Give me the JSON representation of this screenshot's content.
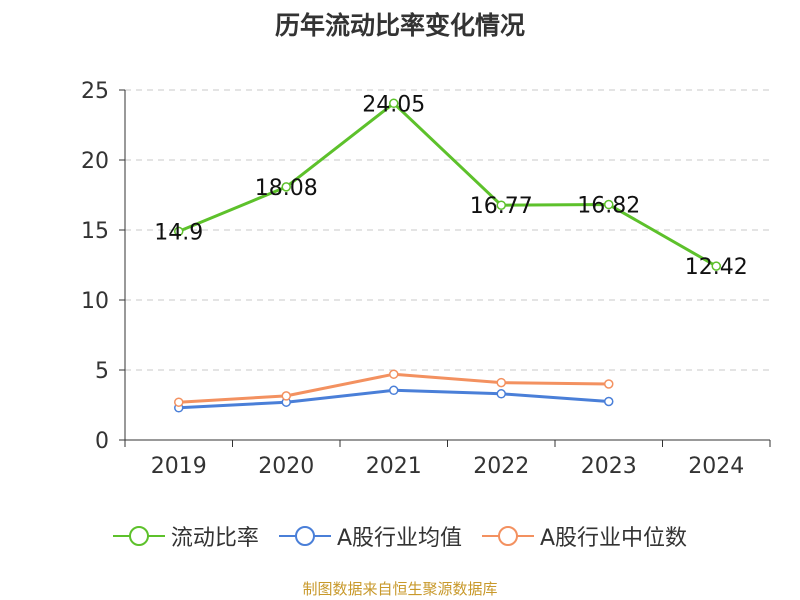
{
  "chart_data": {
    "type": "line",
    "title": "历年流动比率变化情况",
    "categories": [
      "2019",
      "2020",
      "2021",
      "2022",
      "2023",
      "2024"
    ],
    "ylim": [
      0,
      25
    ],
    "yticks": [
      0,
      5,
      10,
      15,
      20,
      25
    ],
    "grid": true,
    "legend_position": "bottom",
    "series": [
      {
        "name": "流动比率",
        "color": "#5dc12b",
        "values": [
          14.9,
          18.08,
          24.05,
          16.77,
          16.82,
          12.42
        ],
        "labels": [
          "14.9",
          "18.08",
          "24.05",
          "16.77",
          "16.82",
          "12.42"
        ]
      },
      {
        "name": "A股行业均值",
        "color": "#4a7fd8",
        "values": [
          2.3,
          2.7,
          3.55,
          3.3,
          2.75,
          null
        ]
      },
      {
        "name": "A股行业中位数",
        "color": "#f39160",
        "values": [
          2.7,
          3.15,
          4.7,
          4.1,
          4.0,
          null
        ]
      }
    ]
  },
  "source_text": "制图数据来自恒生聚源数据库"
}
